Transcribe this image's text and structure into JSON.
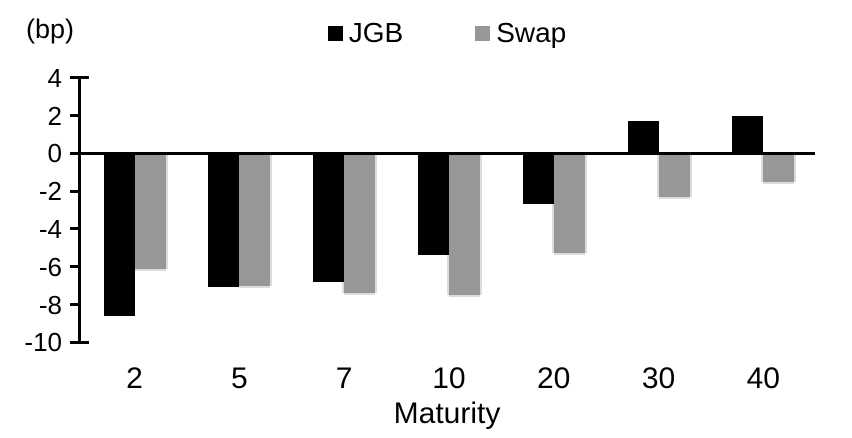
{
  "chart_data": {
    "type": "bar",
    "title": "",
    "unit_label": "(bp)",
    "xlabel": "Maturity",
    "ylabel": "",
    "categories": [
      "2",
      "5",
      "7",
      "10",
      "20",
      "30",
      "40"
    ],
    "series": [
      {
        "name": "JGB",
        "color": "#000000",
        "values": [
          -8.6,
          -7.1,
          -6.8,
          -5.4,
          -2.7,
          1.7,
          2.0
        ]
      },
      {
        "name": "Swap",
        "color": "#979797",
        "values": [
          -6.1,
          -7.0,
          -7.4,
          -7.5,
          -5.3,
          -2.3,
          -1.5
        ]
      }
    ],
    "yticks": [
      4,
      2,
      0,
      -2,
      -4,
      -6,
      -8,
      -10
    ],
    "ylim": [
      -10,
      4
    ],
    "legend_position": "top-center",
    "grid": false,
    "background_color": "#ffffff",
    "swap_halo_color": "#dcdcdc"
  }
}
